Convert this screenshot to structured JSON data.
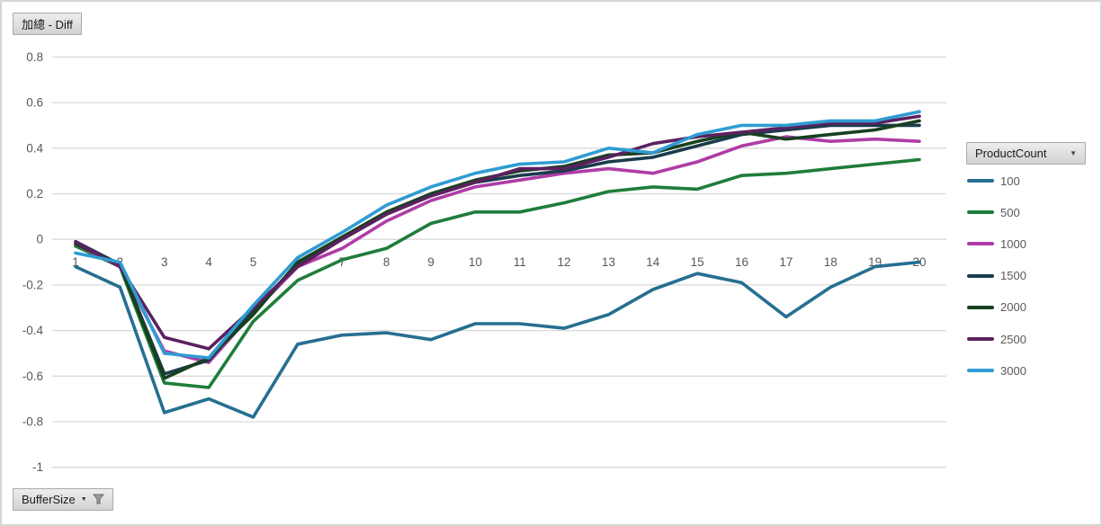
{
  "chart": {
    "title_button": "加總 - Diff",
    "axis_field_button": "BufferSize",
    "legend_field_button": "ProductCount"
  },
  "icons": {
    "legend_dropdown": "▼",
    "filter_dropdown": "▼",
    "funnel": "filter-funnel"
  },
  "colors": {
    "grid": "#d9d9d9",
    "axis_text": "#595959",
    "chart_border": "#d5d5d5"
  },
  "chart_data": {
    "type": "line",
    "title": "加總 - Diff",
    "xlabel": "",
    "ylabel": "",
    "categories": [
      1,
      2,
      3,
      4,
      5,
      6,
      7,
      8,
      9,
      10,
      11,
      12,
      13,
      14,
      15,
      16,
      17,
      18,
      19,
      20
    ],
    "ylim": [
      -1,
      0.8
    ],
    "grid": true,
    "legend_position": "right",
    "legend_title": "ProductCount",
    "yticks": [
      {
        "value": 0.8,
        "label": "0.8"
      },
      {
        "value": 0.6,
        "label": "0.6"
      },
      {
        "value": 0.4,
        "label": "0.4"
      },
      {
        "value": 0.2,
        "label": "0.2"
      },
      {
        "value": 0,
        "label": "0"
      },
      {
        "value": -0.2,
        "label": "-0.2"
      },
      {
        "value": -0.4,
        "label": "-0.4"
      },
      {
        "value": -0.6,
        "label": "-0.6"
      },
      {
        "value": -0.8,
        "label": "-0.8"
      },
      {
        "value": -1,
        "label": "-1"
      }
    ],
    "series": [
      {
        "name": "100",
        "color": "#266f91",
        "values": [
          -0.12,
          -0.21,
          -0.76,
          -0.7,
          -0.78,
          -0.46,
          -0.42,
          -0.41,
          -0.44,
          -0.37,
          -0.37,
          -0.39,
          -0.33,
          -0.22,
          -0.15,
          -0.19,
          -0.34,
          -0.21,
          -0.12,
          -0.1
        ]
      },
      {
        "name": "500",
        "color": "#1f7d3a",
        "values": [
          -0.03,
          -0.12,
          -0.63,
          -0.65,
          -0.36,
          -0.18,
          -0.09,
          -0.04,
          0.07,
          0.12,
          0.12,
          0.16,
          0.21,
          0.23,
          0.22,
          0.28,
          0.29,
          0.31,
          0.33,
          0.35
        ]
      },
      {
        "name": "1000",
        "color": "#af3da6",
        "values": [
          -0.02,
          -0.12,
          -0.49,
          -0.54,
          -0.32,
          -0.12,
          -0.04,
          0.08,
          0.17,
          0.23,
          0.26,
          0.29,
          0.31,
          0.29,
          0.34,
          0.41,
          0.45,
          0.43,
          0.44,
          0.43
        ]
      },
      {
        "name": "1500",
        "color": "#1a3b4d",
        "values": [
          -0.01,
          -0.11,
          -0.59,
          -0.53,
          -0.31,
          -0.11,
          0.0,
          0.11,
          0.2,
          0.25,
          0.28,
          0.3,
          0.34,
          0.36,
          0.41,
          0.46,
          0.48,
          0.5,
          0.5,
          0.5
        ]
      },
      {
        "name": "2000",
        "color": "#17401f",
        "values": [
          -0.02,
          -0.11,
          -0.61,
          -0.52,
          -0.33,
          -0.1,
          0.01,
          0.12,
          0.2,
          0.26,
          0.3,
          0.32,
          0.37,
          0.38,
          0.43,
          0.47,
          0.44,
          0.46,
          0.48,
          0.52
        ]
      },
      {
        "name": "2500",
        "color": "#5c2060",
        "values": [
          -0.01,
          -0.12,
          -0.43,
          -0.48,
          -0.3,
          -0.12,
          0.0,
          0.11,
          0.19,
          0.25,
          0.31,
          0.31,
          0.36,
          0.42,
          0.45,
          0.47,
          0.49,
          0.51,
          0.51,
          0.54
        ]
      },
      {
        "name": "3000",
        "color": "#2f9cd3",
        "values": [
          -0.06,
          -0.1,
          -0.5,
          -0.52,
          -0.29,
          -0.08,
          0.03,
          0.15,
          0.23,
          0.29,
          0.33,
          0.34,
          0.4,
          0.38,
          0.46,
          0.5,
          0.5,
          0.52,
          0.52,
          0.56
        ]
      }
    ]
  }
}
